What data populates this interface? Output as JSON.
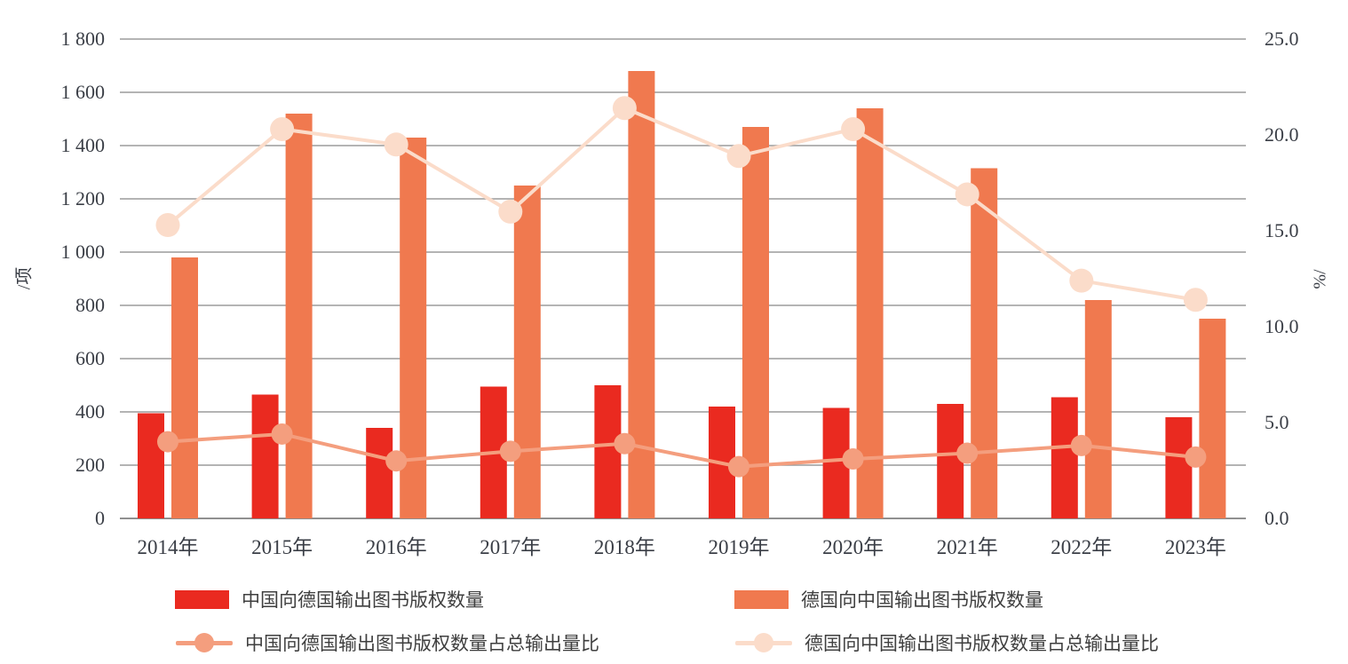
{
  "chart_data": {
    "type": "bar+line combo, dual axis",
    "categories": [
      "2014年",
      "2015年",
      "2016年",
      "2017年",
      "2018年",
      "2019年",
      "2020年",
      "2021年",
      "2022年",
      "2023年"
    ],
    "series": [
      {
        "name": "中国向德国输出图书版权数量",
        "type": "bar",
        "axis": "left",
        "color": "#ea2a20",
        "values": [
          395,
          465,
          340,
          495,
          500,
          420,
          415,
          430,
          455,
          380
        ]
      },
      {
        "name": "德国向中国输出图书版权数量",
        "type": "bar",
        "axis": "left",
        "color": "#f0794f",
        "values": [
          980,
          1520,
          1430,
          1250,
          1680,
          1470,
          1540,
          1315,
          820,
          750
        ]
      },
      {
        "name": "中国向德国输出图书版权数量占总输出量比",
        "type": "line",
        "axis": "right",
        "color": "#f49e7e",
        "values": [
          4.0,
          4.4,
          3.0,
          3.5,
          3.9,
          2.7,
          3.1,
          3.4,
          3.8,
          3.2
        ]
      },
      {
        "name": "德国向中国输出图书版权数量占总输出量比",
        "type": "line",
        "axis": "right",
        "color": "#fbdcca",
        "values": [
          15.3,
          20.3,
          19.5,
          16.0,
          21.4,
          18.9,
          20.3,
          16.9,
          12.4,
          11.4
        ]
      }
    ],
    "left_axis": {
      "label": "/项",
      "min": 0,
      "max": 1800,
      "tick_step": 200,
      "tick_labels": [
        "0",
        "200",
        "400",
        "600",
        "800",
        "1 000",
        "1 200",
        "1 400",
        "1 600",
        "1 800"
      ]
    },
    "right_axis": {
      "label": "%/",
      "min": 0,
      "max": 25,
      "tick_step": 5,
      "tick_labels": [
        "0.0",
        "5.0",
        "10.0",
        "15.0",
        "20.0",
        "25.0"
      ]
    },
    "grid": true,
    "legend_position": "bottom"
  },
  "colors": {
    "grid": "#9b9b9b",
    "baseline": "#909090",
    "text": "#3a3e46"
  }
}
